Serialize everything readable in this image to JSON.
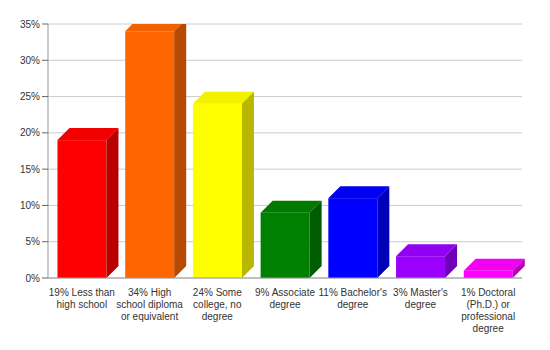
{
  "chart_data": {
    "type": "bar",
    "categories": [
      "19% Less than high school",
      "34% High school diploma or equivalent",
      "24% Some college, no degree",
      "9% Associate degree",
      "11% Bachelor's degree",
      "3% Master's degree",
      "1% Doctoral (Ph.D.) or professional degree"
    ],
    "values": [
      19,
      34,
      24,
      9,
      11,
      3,
      1
    ],
    "colors": [
      "#ff0000",
      "#ff6600",
      "#ffff00",
      "#008000",
      "#0000ff",
      "#9900ff",
      "#ff00ff"
    ],
    "ylim": [
      0,
      35
    ],
    "yticks": [
      {
        "value": 0,
        "label": "0%"
      },
      {
        "value": 5,
        "label": "5%"
      },
      {
        "value": 10,
        "label": "10%"
      },
      {
        "value": 15,
        "label": "15%"
      },
      {
        "value": 20,
        "label": "20%"
      },
      {
        "value": 25,
        "label": "25%"
      },
      {
        "value": 30,
        "label": "30%"
      },
      {
        "value": 35,
        "label": "35%"
      }
    ],
    "grid": true
  }
}
